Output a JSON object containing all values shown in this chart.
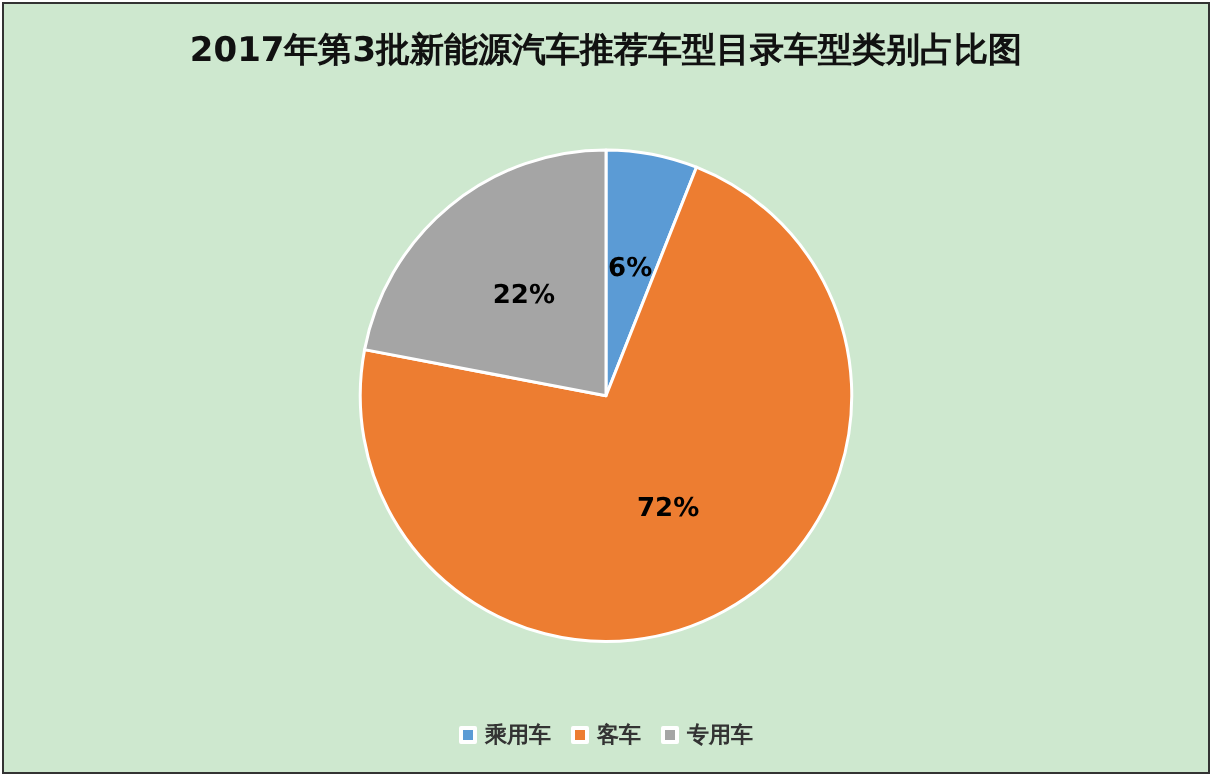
{
  "chart_data": {
    "type": "pie",
    "title": "2017年第3批新能源汽车推荐车型目录车型类别占比图",
    "categories": [
      "乘用车",
      "客车",
      "专用车"
    ],
    "values": [
      6,
      72,
      22
    ],
    "colors": [
      "#5b9bd5",
      "#ed7d31",
      "#a5a5a5"
    ],
    "value_labels": [
      "6%",
      "72%",
      "22%"
    ],
    "legend": "bottom"
  }
}
